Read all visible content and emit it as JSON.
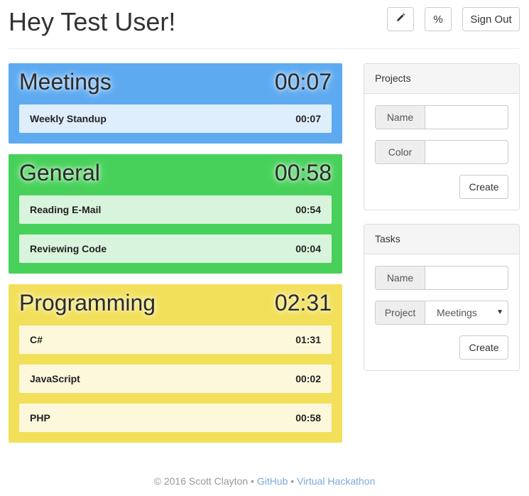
{
  "header": {
    "title": "Hey Test User!",
    "edit_icon": "pencil-icon",
    "percent_label": "%",
    "signout_label": "Sign Out"
  },
  "projects": [
    {
      "name": "Meetings",
      "total": "00:07",
      "color": "#5daaf1",
      "task_bg": "#deeefc",
      "tasks": [
        {
          "name": "Weekly Standup",
          "time": "00:07"
        }
      ]
    },
    {
      "name": "General",
      "total": "00:58",
      "color": "#47d15a",
      "task_bg": "#d9f4dd",
      "tasks": [
        {
          "name": "Reading E-Mail",
          "time": "00:54"
        },
        {
          "name": "Reviewing Code",
          "time": "00:04"
        }
      ]
    },
    {
      "name": "Programming",
      "total": "02:31",
      "color": "#f2e05a",
      "task_bg": "#fdf8db",
      "tasks": [
        {
          "name": "C#",
          "time": "01:31"
        },
        {
          "name": "JavaScript",
          "time": "00:02"
        },
        {
          "name": "PHP",
          "time": "00:58"
        }
      ]
    }
  ],
  "projects_panel": {
    "heading": "Projects",
    "name_label": "Name",
    "name_value": "",
    "color_label": "Color",
    "color_value": "",
    "create_label": "Create"
  },
  "tasks_panel": {
    "heading": "Tasks",
    "name_label": "Name",
    "name_value": "",
    "project_label": "Project",
    "project_selected": "Meetings",
    "create_label": "Create"
  },
  "footer": {
    "copyright": "© 2016 Scott Clayton",
    "separator": " • ",
    "github_link": "GitHub",
    "hackathon_link": "Virtual Hackathon"
  }
}
